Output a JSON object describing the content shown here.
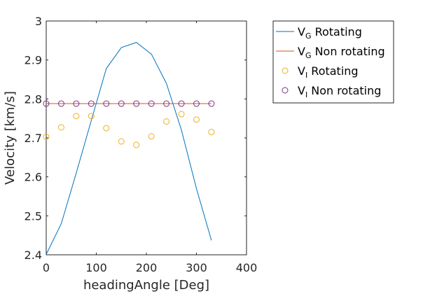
{
  "chart_data": {
    "type": "line",
    "xlabel": "headingAngle [Deg]",
    "ylabel": "Velocity [km/s]",
    "xlim": [
      0,
      400
    ],
    "ylim": [
      2.4,
      3.0
    ],
    "xticks": [
      "0",
      "100",
      "200",
      "300",
      "400"
    ],
    "yticks": [
      "2.4",
      "2.5",
      "2.6",
      "2.7",
      "2.8",
      "2.9",
      "3"
    ],
    "grid": false,
    "legend_position": "outside-top-right",
    "series": [
      {
        "kind": "line",
        "legend_main": "V",
        "legend_sub": "G",
        "legend_rest": " Rotating",
        "color": "#0072BD",
        "x": [
          0,
          30,
          60,
          90,
          120,
          150,
          180,
          210,
          240,
          270,
          300,
          330
        ],
        "y": [
          2.401,
          2.48,
          2.61,
          2.745,
          2.878,
          2.932,
          2.945,
          2.915,
          2.84,
          2.72,
          2.57,
          2.437
        ]
      },
      {
        "kind": "line",
        "legend_main": "V",
        "legend_sub": "G",
        "legend_rest": " Non rotating",
        "color": "#D95319",
        "x": [
          0,
          30,
          60,
          90,
          120,
          150,
          180,
          210,
          240,
          270,
          300,
          330
        ],
        "y": [
          2.788,
          2.788,
          2.788,
          2.788,
          2.788,
          2.788,
          2.788,
          2.788,
          2.788,
          2.788,
          2.788,
          2.788
        ]
      },
      {
        "kind": "scatter",
        "legend_main": "V",
        "legend_sub": "I",
        "legend_rest": " Rotating",
        "color": "#EDB120",
        "x": [
          0,
          30,
          60,
          90,
          120,
          150,
          180,
          210,
          240,
          270,
          300,
          330
        ],
        "y": [
          2.703,
          2.727,
          2.756,
          2.756,
          2.725,
          2.691,
          2.682,
          2.704,
          2.742,
          2.761,
          2.747,
          2.715
        ]
      },
      {
        "kind": "scatter",
        "legend_main": "V",
        "legend_sub": "I",
        "legend_rest": " Non rotating",
        "color": "#7E2F8E",
        "x": [
          0,
          30,
          60,
          90,
          120,
          150,
          180,
          210,
          240,
          270,
          300,
          330
        ],
        "y": [
          2.788,
          2.788,
          2.788,
          2.788,
          2.788,
          2.788,
          2.788,
          2.788,
          2.788,
          2.788,
          2.788,
          2.788
        ]
      }
    ]
  }
}
